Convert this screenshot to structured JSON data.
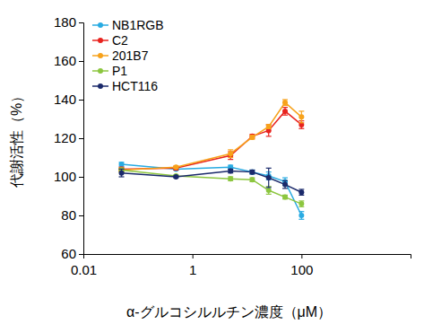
{
  "chart_data": {
    "type": "line",
    "x_label": "α-グルコシルルチン濃度（μM）",
    "y_label": "代謝活性（%）",
    "x": [
      0.05,
      0.5,
      5,
      12.5,
      25,
      50,
      100
    ],
    "log": "x",
    "xlim": [
      0.01,
      10000
    ],
    "xticks": [
      0.01,
      1,
      100
    ],
    "ylim": [
      60,
      180
    ],
    "yticks": [
      60,
      80,
      100,
      120,
      140,
      160,
      180
    ],
    "grid": false,
    "legend": "upper left",
    "marker": "circle",
    "series": [
      {
        "name": "NB1RGB",
        "color": "#29abe2",
        "values": [
          106.5,
          104,
          105,
          102.5,
          100.5,
          97.5,
          80
        ],
        "errors": [
          1,
          0.5,
          1,
          1,
          2,
          2,
          2
        ]
      },
      {
        "name": "C2",
        "color": "#e8231e",
        "values": [
          104,
          104.5,
          111,
          121,
          124,
          134,
          127
        ],
        "errors": [
          1,
          1,
          2,
          1,
          3,
          2,
          2
        ]
      },
      {
        "name": "201B7",
        "color": "#f7a21b",
        "values": [
          103.5,
          105,
          112,
          120.5,
          126,
          138.5,
          131
        ],
        "errors": [
          1,
          0.5,
          2,
          1,
          1,
          1.5,
          3
        ]
      },
      {
        "name": "P1",
        "color": "#8cc63f",
        "values": [
          103.5,
          100.5,
          99,
          98.5,
          93,
          89.5,
          86
        ],
        "errors": [
          1,
          0.5,
          1,
          1,
          2,
          1,
          1.5
        ]
      },
      {
        "name": "HCT116",
        "color": "#1b2a6b",
        "values": [
          102,
          100,
          103,
          102.5,
          99.5,
          96,
          92
        ],
        "errors": [
          2,
          0.5,
          1,
          1,
          5,
          2,
          1.5
        ]
      }
    ]
  }
}
